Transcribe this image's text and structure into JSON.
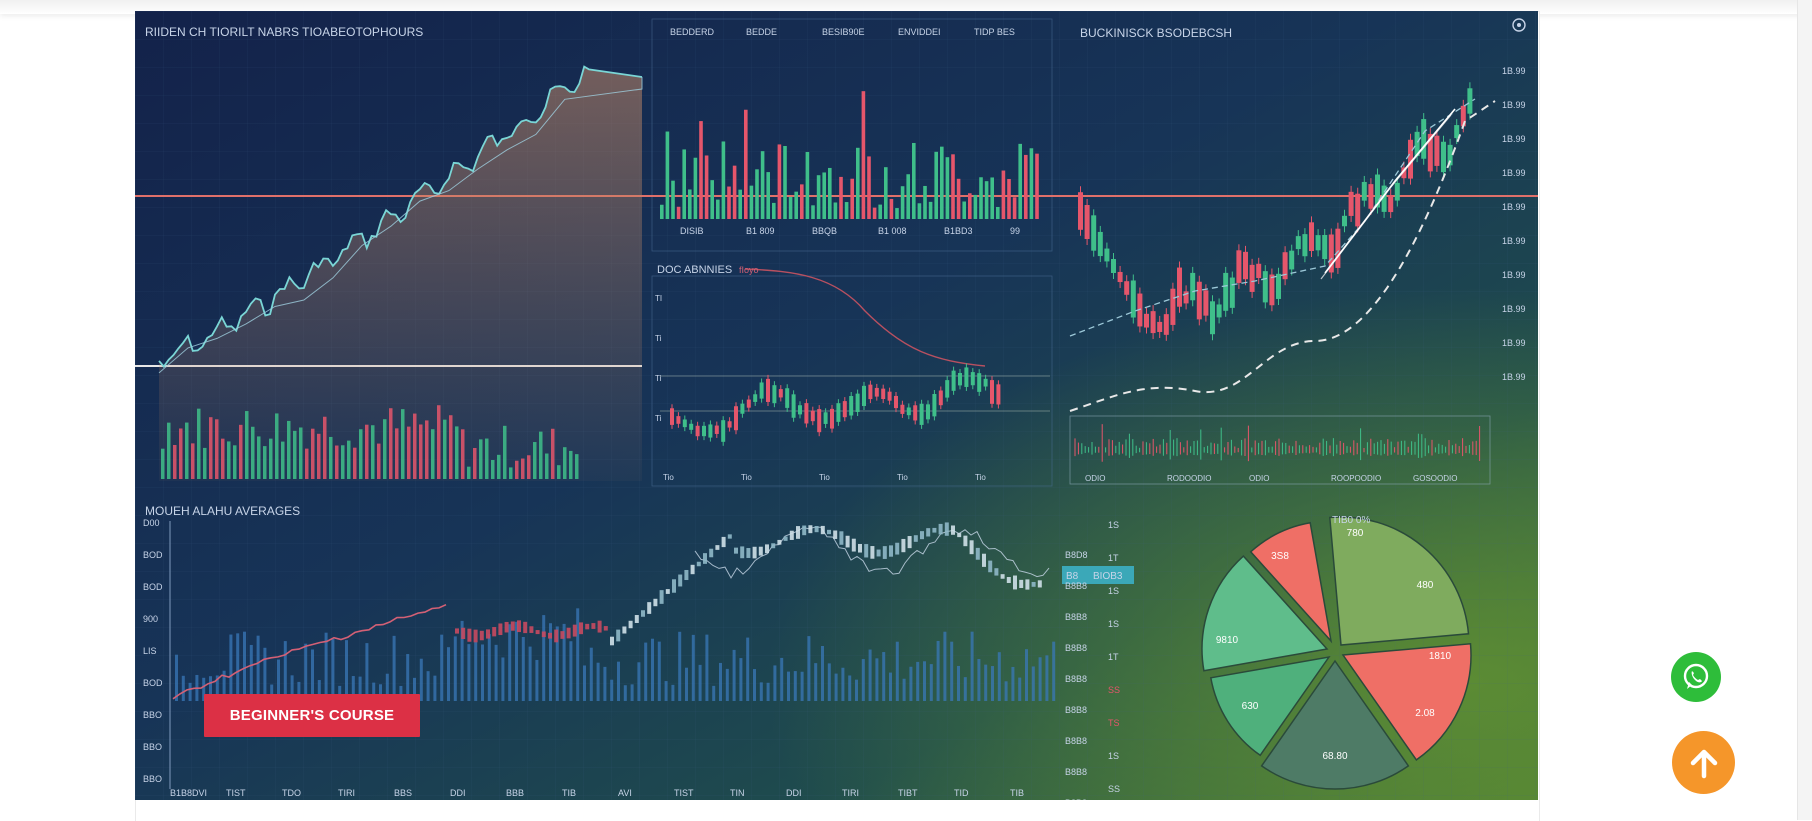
{
  "hero": {
    "panel_titles": {
      "top_left": "RIIDEN CH TIORILT NABRS TIOABEOTOPHOURS",
      "bottom_left": "MOUEH ALAHU AVERAGES",
      "top_right": "BUCKINISCK BSODEBCSH",
      "middle": "DOC ABNNIES"
    },
    "top_header_labels": [
      "BEDDERD",
      "BEDDE",
      "BESIB90E",
      "ENVIDDEI",
      "TIDP BES"
    ],
    "bar_x_labels": [
      "DISIB",
      "B1 809",
      "BBQB",
      "B1 008",
      "B1BD3",
      "99"
    ],
    "mid_y_labels": [
      "TI",
      "Ti",
      "Ti",
      "Ti"
    ],
    "mid_x_labels": [
      "Tio",
      "Tio",
      "Tio",
      "Tio",
      "Tio"
    ],
    "right_axis_labels": [
      "1B.99",
      "1B.99",
      "1B.99",
      "1B.99",
      "1B.99",
      "1B.99",
      "1B.99",
      "1B.99",
      "1B.99",
      "1B.99"
    ],
    "vol_x_labels": [
      "ODIO",
      "RODOODIO",
      "ODIO",
      "ROOPOODIO",
      "GOSOODIO"
    ],
    "ma_left_labels": [
      "D00",
      "BOD",
      "BOD",
      "900",
      "LIS",
      "BOD",
      "BBO",
      "BBO",
      "BBO"
    ],
    "ma_right_labels": [
      "B8D8",
      "B8B8",
      "B8B8",
      "B8B8",
      "B8B8",
      "B8B8",
      "B8B8",
      "B8B8",
      "B8B8"
    ],
    "ma_right_values": [
      "1S",
      "1T",
      "1S",
      "1S",
      "1T",
      "SS",
      "TS",
      "1S",
      "SS"
    ],
    "ma_x_labels": [
      "B1B8DVI",
      "TIST",
      "TDO",
      "TIRI",
      "BBS",
      "DDI",
      "BBB",
      "TIB",
      "AVI",
      "TIST",
      "TIN",
      "DDI",
      "TIRI",
      "TIBT",
      "TID",
      "TIB"
    ],
    "ma_highlight": {
      "left": "B8",
      "right": "BIOB3"
    },
    "pie_header": "TIB0 0%",
    "pie_labels": [
      "780",
      "480",
      "1810",
      "2.08",
      "68.80",
      "630",
      "9810",
      "3S8"
    ]
  },
  "buttons": {
    "course_label": "BEGINNER'S COURSE"
  },
  "floating": {
    "whatsapp_icon": "whatsapp-icon",
    "back_to_top_icon": "arrow-up-icon"
  },
  "colors": {
    "button_red": "#dc3045",
    "whatsapp_green": "#2ebd3a",
    "back_to_top_orange": "#f5962a",
    "candle_green": "#3fbf8a",
    "candle_red": "#e5566b"
  }
}
